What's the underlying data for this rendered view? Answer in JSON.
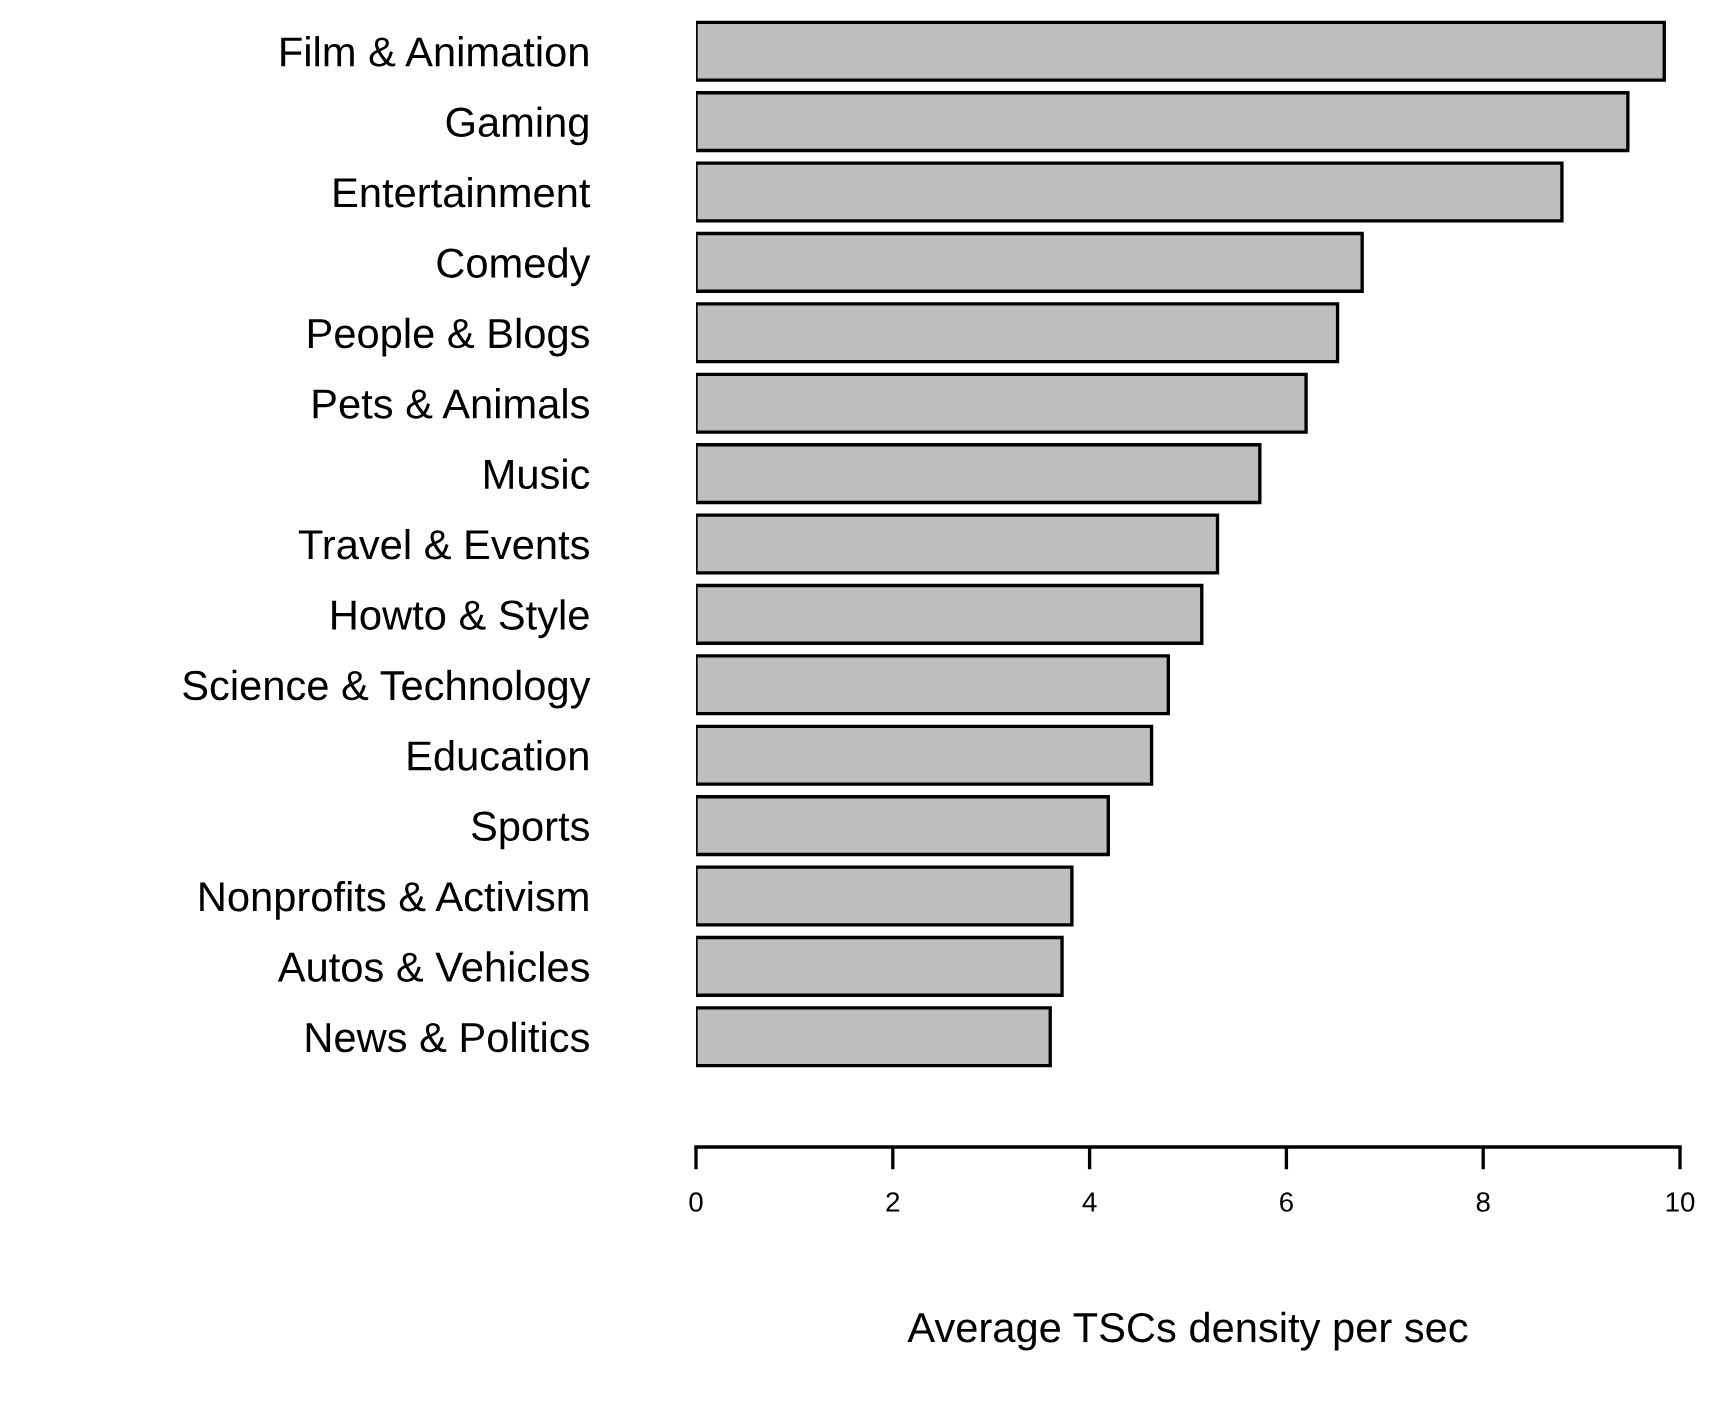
{
  "chart_data": {
    "type": "bar",
    "orientation": "horizontal",
    "xlabel": "Average TSCs density per sec",
    "categories": [
      "Film & Animation",
      "Gaming",
      "Entertainment",
      "Comedy",
      "People & Blogs",
      "Pets & Animals",
      "Music",
      "Travel & Events",
      "Howto & Style",
      "Science & Technology",
      "Education",
      "Sports",
      "Nonprofits & Activism",
      "Autos & Vehicles",
      "News & Politics"
    ],
    "values": [
      9.84,
      9.47,
      8.8,
      6.77,
      6.52,
      6.2,
      5.73,
      5.3,
      5.14,
      4.8,
      4.63,
      4.19,
      3.82,
      3.72,
      3.6
    ],
    "color": "#bebebe",
    "xlim": [
      0,
      10
    ],
    "xticks": [
      0,
      2,
      4,
      6,
      8,
      10
    ],
    "grid": false
  }
}
